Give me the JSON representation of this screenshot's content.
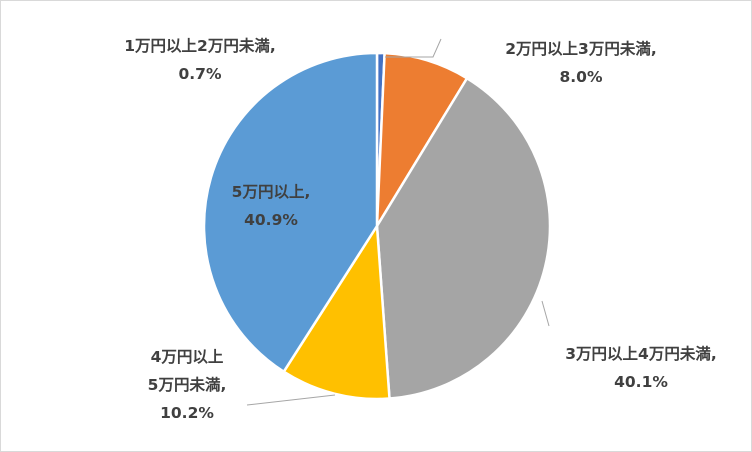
{
  "chart_data": {
    "type": "pie",
    "title": "",
    "start_angle_deg": 0,
    "direction": "clockwise",
    "slices": [
      {
        "label_lines": [
          "1万円以上2万円未満,",
          "0.7%"
        ],
        "value": 0.7,
        "color": "#4472C4"
      },
      {
        "label_lines": [
          "2万円以上3万円未満,",
          "8.0%"
        ],
        "value": 8.0,
        "color": "#ED7D31"
      },
      {
        "label_lines": [
          "3万円以上4万円未満,",
          "40.1%"
        ],
        "value": 40.1,
        "color": "#A5A5A5"
      },
      {
        "label_lines": [
          "4万円以上",
          "5万円未満,",
          "10.2%"
        ],
        "value": 10.2,
        "color": "#FFC000"
      },
      {
        "label_lines": [
          "5万円以上,",
          "40.9%"
        ],
        "value": 40.9,
        "color": "#5B9BD5"
      }
    ]
  }
}
